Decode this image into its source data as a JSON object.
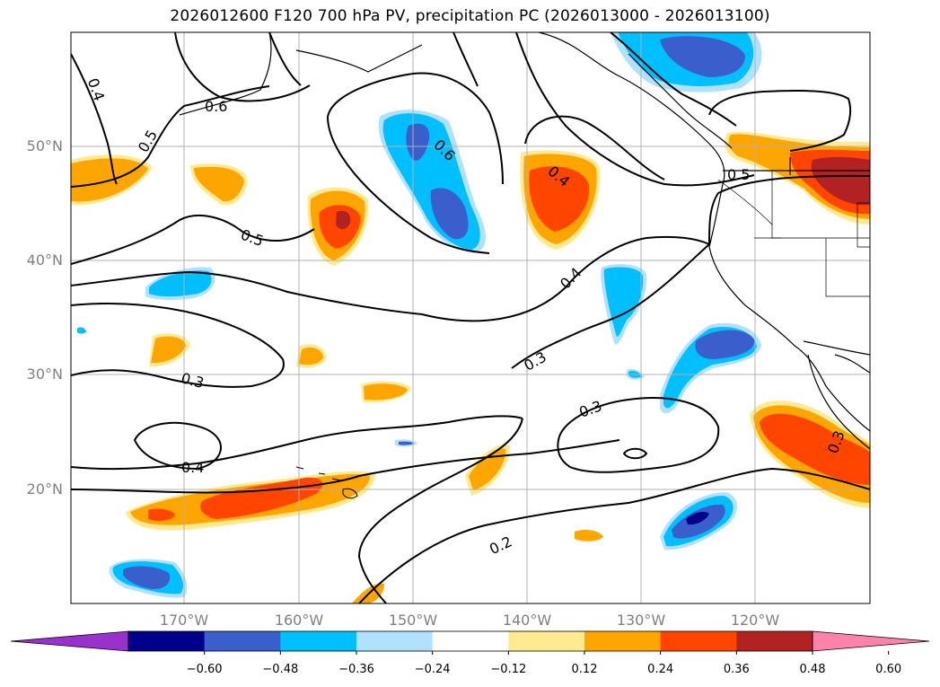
{
  "title": "2026012600 F120 700 hPa PV, precipitation PC (2026013000 - 2026013100)",
  "map": {
    "lat_labels": [
      "50°N",
      "40°N",
      "30°N",
      "20°N"
    ],
    "lon_labels": [
      "170°W",
      "160°W",
      "150°W",
      "140°W",
      "130°W",
      "120°W"
    ],
    "extent": {
      "lon_min": -180,
      "lon_max": -110,
      "lat_min": 10,
      "lat_max": 60
    },
    "grid": true
  },
  "contour_labels": [
    "0.4",
    "0.5",
    "0.6",
    "0.5",
    "0.6",
    "0.4",
    "0.5",
    "0.4",
    "0.3",
    "0.3",
    "0.3",
    "0.4",
    "0.3",
    "0.2"
  ],
  "colorbar": {
    "ticks": [
      "−0.60",
      "−0.48",
      "−0.36",
      "−0.24",
      "−0.12",
      "0.12",
      "0.24",
      "0.36",
      "0.48",
      "0.60"
    ],
    "colors": [
      "#9932cc",
      "#00008b",
      "#3a5fcd",
      "#00bfff",
      "#b0e2ff",
      "#ffffff",
      "#ffe991",
      "#ffa500",
      "#ff4500",
      "#b22222",
      "#ff82ab"
    ],
    "extend": "both"
  }
}
